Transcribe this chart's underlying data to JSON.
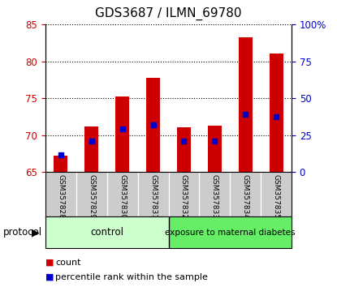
{
  "title": "GDS3687 / ILMN_69780",
  "samples": [
    "GSM357828",
    "GSM357829",
    "GSM357830",
    "GSM357831",
    "GSM357832",
    "GSM357833",
    "GSM357834",
    "GSM357835"
  ],
  "bar_bottoms": [
    65,
    65,
    65,
    65,
    65,
    65,
    65,
    65
  ],
  "bar_tops": [
    67.2,
    71.2,
    75.3,
    77.8,
    71.1,
    71.3,
    83.2,
    81.1
  ],
  "blue_values": [
    67.4,
    69.2,
    70.9,
    71.4,
    69.2,
    69.2,
    72.8,
    72.5
  ],
  "ylim_left": [
    65,
    85
  ],
  "yticks_left": [
    65,
    70,
    75,
    80,
    85
  ],
  "ylim_right": [
    0,
    100
  ],
  "yticks_right": [
    0,
    25,
    50,
    75,
    100
  ],
  "yticklabels_right": [
    "0",
    "25",
    "50",
    "75",
    "100%"
  ],
  "bar_color": "#cc0000",
  "blue_color": "#0000cc",
  "control_color": "#ccffcc",
  "exposure_color": "#66ee66",
  "control_label": "control",
  "exposure_label": "exposure to maternal diabetes",
  "protocol_label": "protocol",
  "legend_count": "count",
  "legend_percentile": "percentile rank within the sample",
  "bar_width": 0.45,
  "left_color": "#cc0000",
  "right_color": "#0000cc",
  "n_control": 4,
  "n_exposure": 4
}
